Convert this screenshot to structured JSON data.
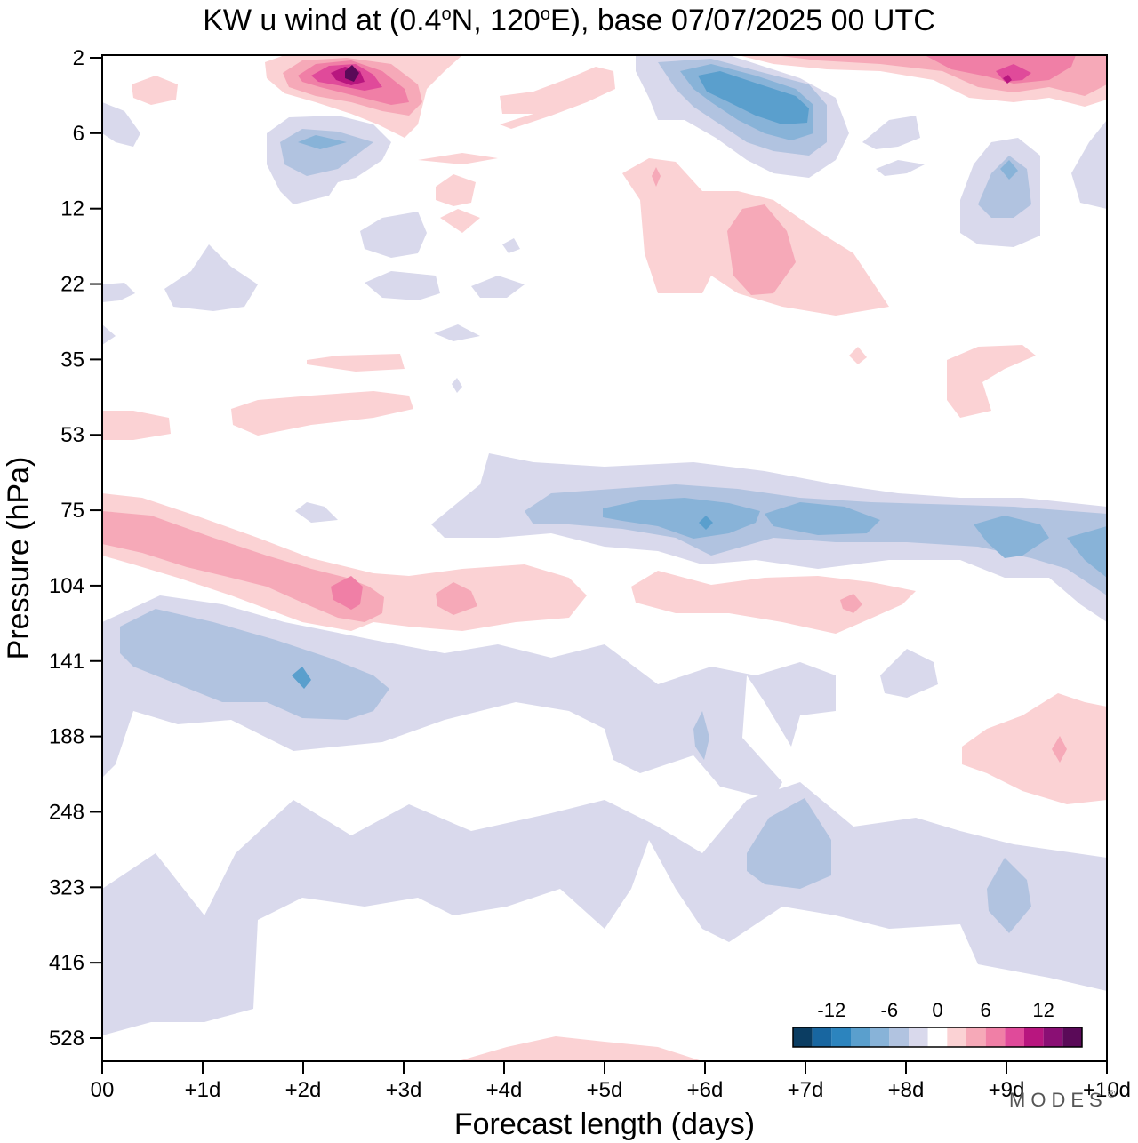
{
  "title_main": "KW u wind at (0.4",
  "title_deg1": "o",
  "title_mid": "N, 120",
  "title_deg2": "o",
  "title_end": "E),  base 07/07/2025  00 UTC",
  "branding": "MODES",
  "branding_mark": "®",
  "chart_data": {
    "type": "contour",
    "title": "KW u wind at (0.4°N, 120°E),  base 07/07/2025  00 UTC",
    "xlabel": "Forecast length (days)",
    "ylabel": "Pressure (hPa)",
    "x_ticks": [
      "00",
      "+1d",
      "+2d",
      "+3d",
      "+4d",
      "+5d",
      "+6d",
      "+7d",
      "+8d",
      "+9d",
      "+10d"
    ],
    "xlim_days": [
      0,
      10
    ],
    "y_ticks": [
      "2",
      "6",
      "12",
      "22",
      "35",
      "53",
      "75",
      "104",
      "141",
      "188",
      "248",
      "323",
      "416",
      "528"
    ],
    "y_axis_reversed": true,
    "levels": [
      -14,
      -12,
      -10,
      -8,
      -6,
      -4,
      -2,
      2,
      4,
      6,
      8,
      10,
      12,
      14
    ],
    "colorbar": {
      "labels": [
        "-12",
        "-6",
        "0",
        "6",
        "12"
      ],
      "colors": [
        "#0b3d62",
        "#1866a0",
        "#2c84be",
        "#5a9fcd",
        "#88b3d8",
        "#b1c3e0",
        "#d9d9ec",
        "#ffffff",
        "#fbd2d4",
        "#f6a9b8",
        "#f07fa6",
        "#e04a9a",
        "#b8167f",
        "#8a0f74",
        "#5a0a58"
      ]
    },
    "features": [
      {
        "sign": "negative",
        "desc": "easterly band near 75-90 hPa, days 3.5-10",
        "min": -8
      },
      {
        "sign": "negative",
        "desc": "easterly band near 130-190 hPa, days 0-10",
        "min": -8
      },
      {
        "sign": "negative",
        "desc": "easterly region 250-500 hPa, days 0-10",
        "min": -6
      },
      {
        "sign": "positive",
        "desc": "westerly band near 80-115 hPa, days 0-6",
        "max": 8
      },
      {
        "sign": "positive",
        "desc": "westerly maximum near 3 hPa, day 2.5",
        "max": 14
      },
      {
        "sign": "negative",
        "desc": "easterly maximum near 3-5 hPa, day 6.5",
        "min": -8
      }
    ]
  }
}
